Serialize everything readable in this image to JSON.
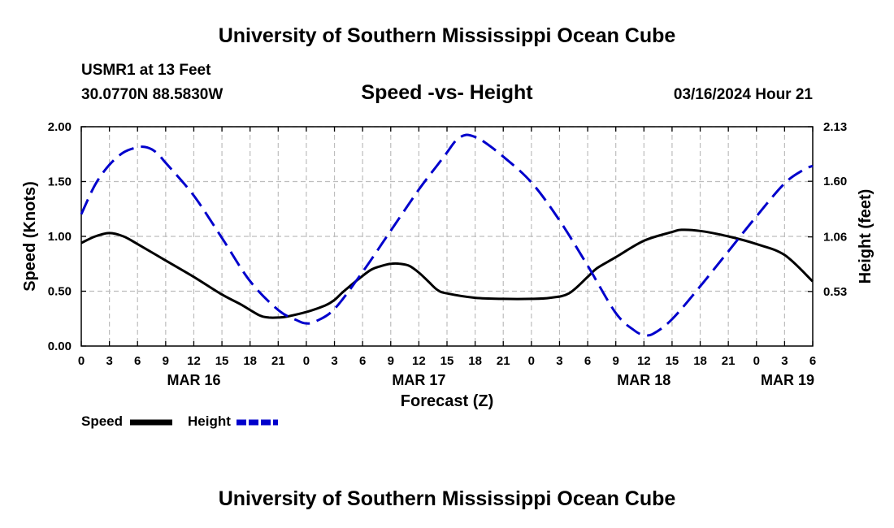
{
  "header": {
    "title": "University of Southern Mississippi Ocean Cube",
    "station": "USMR1 at 13 Feet",
    "coords": "30.0770N  88.5830W",
    "subtitle": "Speed -vs- Height",
    "datetime": "03/16/2024 Hour 21"
  },
  "footer": {
    "title": "University of Southern Mississippi Ocean Cube"
  },
  "chart_data": {
    "type": "line",
    "xlabel": "Forecast (Z)",
    "ylabel": "Speed (Knots)",
    "y2label": "Height (feet)",
    "x_range": [
      0,
      78
    ],
    "ylim": [
      0,
      2.0
    ],
    "y2lim": [
      0,
      2.13
    ],
    "x_tick_positions": [
      0,
      3,
      6,
      9,
      12,
      15,
      18,
      21,
      24,
      27,
      30,
      33,
      36,
      39,
      42,
      45,
      48,
      51,
      54,
      57,
      60,
      63,
      66,
      69,
      72,
      75,
      78
    ],
    "x_tick_labels": [
      "0",
      "3",
      "6",
      "9",
      "12",
      "15",
      "18",
      "21",
      "0",
      "3",
      "6",
      "9",
      "12",
      "15",
      "18",
      "21",
      "0",
      "3",
      "6",
      "9",
      "12",
      "15",
      "18",
      "21",
      "0",
      "3",
      "6"
    ],
    "date_labels": [
      {
        "x": 12,
        "label": "MAR 16"
      },
      {
        "x": 36,
        "label": "MAR 17"
      },
      {
        "x": 60,
        "label": "MAR 18"
      },
      {
        "x": 78,
        "label": "MAR 19"
      }
    ],
    "y_ticks": [
      0.0,
      0.5,
      1.0,
      1.5,
      2.0
    ],
    "y_tick_labels": [
      "0.00",
      "0.50",
      "1.00",
      "1.50",
      "2.00"
    ],
    "y2_ticks": [
      0.53,
      1.06,
      1.6,
      2.13
    ],
    "y2_tick_labels": [
      "0.53",
      "1.06",
      "1.60",
      "2.13"
    ],
    "grid": true,
    "series": [
      {
        "name": "Speed",
        "axis": "left",
        "color": "#000000",
        "dash": "solid",
        "points": [
          [
            0,
            0.94
          ],
          [
            1.5,
            1.0
          ],
          [
            3,
            1.03
          ],
          [
            4.5,
            1.0
          ],
          [
            6,
            0.93
          ],
          [
            9,
            0.78
          ],
          [
            12,
            0.63
          ],
          [
            15,
            0.47
          ],
          [
            17,
            0.38
          ],
          [
            19,
            0.28
          ],
          [
            20,
            0.26
          ],
          [
            21,
            0.26
          ],
          [
            22,
            0.27
          ],
          [
            24,
            0.31
          ],
          [
            26,
            0.37
          ],
          [
            27,
            0.42
          ],
          [
            28,
            0.5
          ],
          [
            30,
            0.64
          ],
          [
            31,
            0.7
          ],
          [
            32,
            0.73
          ],
          [
            33,
            0.75
          ],
          [
            34,
            0.75
          ],
          [
            35,
            0.73
          ],
          [
            36,
            0.67
          ],
          [
            37,
            0.59
          ],
          [
            38,
            0.51
          ],
          [
            39,
            0.48
          ],
          [
            42,
            0.44
          ],
          [
            45,
            0.43
          ],
          [
            48,
            0.43
          ],
          [
            50,
            0.44
          ],
          [
            52,
            0.48
          ],
          [
            54,
            0.63
          ],
          [
            55,
            0.71
          ],
          [
            57,
            0.81
          ],
          [
            60,
            0.96
          ],
          [
            63,
            1.04
          ],
          [
            64,
            1.06
          ],
          [
            66,
            1.05
          ],
          [
            69,
            1.0
          ],
          [
            72,
            0.93
          ],
          [
            75,
            0.83
          ],
          [
            78,
            0.59
          ]
        ]
      },
      {
        "name": "Height",
        "axis": "right",
        "color": "#0000cc",
        "dash": "dashed",
        "points": [
          [
            0,
            1.28
          ],
          [
            1.5,
            1.57
          ],
          [
            3,
            1.76
          ],
          [
            4.5,
            1.88
          ],
          [
            6,
            1.93
          ],
          [
            7,
            1.93
          ],
          [
            8,
            1.88
          ],
          [
            9,
            1.78
          ],
          [
            12,
            1.46
          ],
          [
            15,
            1.05
          ],
          [
            18,
            0.63
          ],
          [
            21,
            0.35
          ],
          [
            23,
            0.25
          ],
          [
            24,
            0.22
          ],
          [
            25,
            0.24
          ],
          [
            27,
            0.36
          ],
          [
            30,
            0.72
          ],
          [
            33,
            1.12
          ],
          [
            36,
            1.52
          ],
          [
            38,
            1.76
          ],
          [
            39,
            1.88
          ],
          [
            40,
            2.0
          ],
          [
            41,
            2.05
          ],
          [
            42,
            2.03
          ],
          [
            43,
            1.98
          ],
          [
            45,
            1.84
          ],
          [
            48,
            1.59
          ],
          [
            51,
            1.22
          ],
          [
            54,
            0.78
          ],
          [
            57,
            0.32
          ],
          [
            59,
            0.15
          ],
          [
            60,
            0.11
          ],
          [
            61,
            0.12
          ],
          [
            63,
            0.26
          ],
          [
            66,
            0.58
          ],
          [
            69,
            0.92
          ],
          [
            72,
            1.26
          ],
          [
            75,
            1.58
          ],
          [
            77,
            1.71
          ],
          [
            78,
            1.75
          ]
        ]
      }
    ],
    "legend": [
      {
        "label": "Speed",
        "color": "#000000"
      },
      {
        "label": "Height",
        "color": "#0000cc"
      }
    ]
  }
}
